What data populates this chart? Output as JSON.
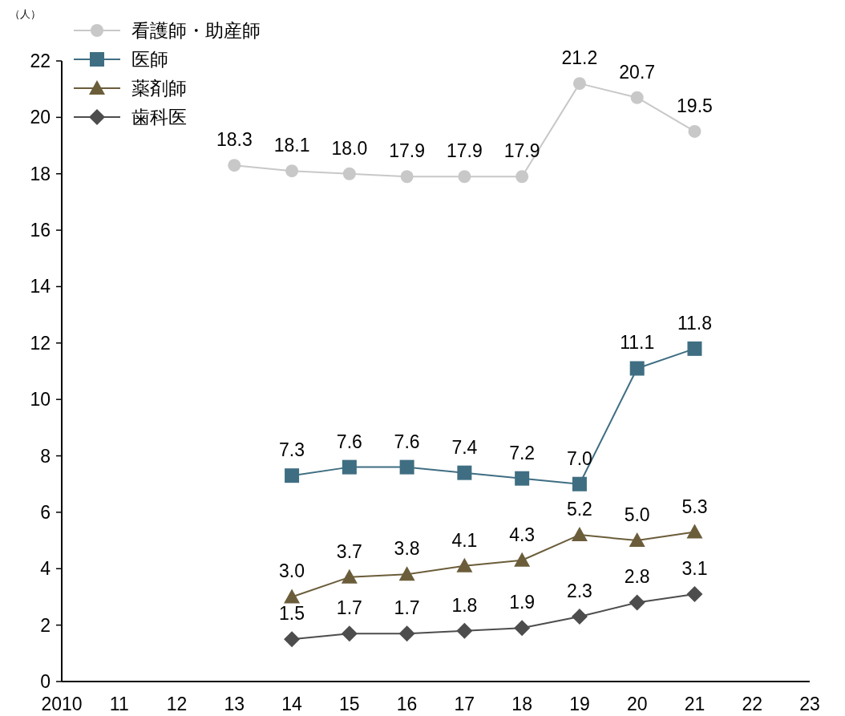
{
  "chart_data": {
    "type": "line",
    "ylabel": "（人）",
    "xlim": [
      2010,
      2023
    ],
    "xticks": [
      2010,
      {
        "value": 2011,
        "label": "11"
      },
      {
        "value": 2012,
        "label": "12"
      },
      {
        "value": 2013,
        "label": "13"
      },
      {
        "value": 2014,
        "label": "14"
      },
      {
        "value": 2015,
        "label": "15"
      },
      {
        "value": 2016,
        "label": "16"
      },
      {
        "value": 2017,
        "label": "17"
      },
      {
        "value": 2018,
        "label": "18"
      },
      {
        "value": 2019,
        "label": "19"
      },
      {
        "value": 2020,
        "label": "20"
      },
      {
        "value": 2021,
        "label": "21"
      },
      {
        "value": 2022,
        "label": "22"
      },
      {
        "value": 2023,
        "label": "23"
      }
    ],
    "ylim": [
      0,
      22
    ],
    "yticks": [
      0,
      2,
      4,
      6,
      8,
      10,
      12,
      14,
      16,
      18,
      20,
      22
    ],
    "grid": false,
    "legend": "top left",
    "series": [
      {
        "name": "看護師・助産師",
        "color": "#c8c8c8",
        "marker": "circle",
        "x": [
          2013,
          2014,
          2015,
          2016,
          2017,
          2018,
          2019,
          2020,
          2021
        ],
        "values": [
          18.3,
          18.1,
          18.0,
          17.9,
          17.9,
          17.9,
          21.2,
          20.7,
          19.5
        ],
        "value_labels": [
          "18.3",
          "18.1",
          "18.0",
          "17.9",
          "17.9",
          "17.9",
          "21.2",
          "20.7",
          "19.5"
        ]
      },
      {
        "name": "医師",
        "color": "#3f6e82",
        "marker": "square",
        "x": [
          2014,
          2015,
          2016,
          2017,
          2018,
          2019,
          2020,
          2021
        ],
        "values": [
          7.3,
          7.6,
          7.6,
          7.4,
          7.2,
          7.0,
          11.1,
          11.8
        ],
        "value_labels": [
          "7.3",
          "7.6",
          "7.6",
          "7.4",
          "7.2",
          "7.0",
          "11.1",
          "11.8"
        ]
      },
      {
        "name": "薬剤師",
        "color": "#6b5d3a",
        "marker": "triangle",
        "x": [
          2014,
          2015,
          2016,
          2017,
          2018,
          2019,
          2020,
          2021
        ],
        "values": [
          3.0,
          3.7,
          3.8,
          4.1,
          4.3,
          5.2,
          5.0,
          5.3
        ],
        "value_labels": [
          "3.0",
          "3.7",
          "3.8",
          "4.1",
          "4.3",
          "5.2",
          "5.0",
          "5.3"
        ]
      },
      {
        "name": "歯科医",
        "color": "#4d4d4d",
        "marker": "diamond",
        "x": [
          2014,
          2015,
          2016,
          2017,
          2018,
          2019,
          2020,
          2021
        ],
        "values": [
          1.5,
          1.7,
          1.7,
          1.8,
          1.9,
          2.3,
          2.8,
          3.1
        ],
        "value_labels": [
          "1.5",
          "1.7",
          "1.7",
          "1.8",
          "1.9",
          "2.3",
          "2.8",
          "3.1"
        ]
      }
    ]
  }
}
